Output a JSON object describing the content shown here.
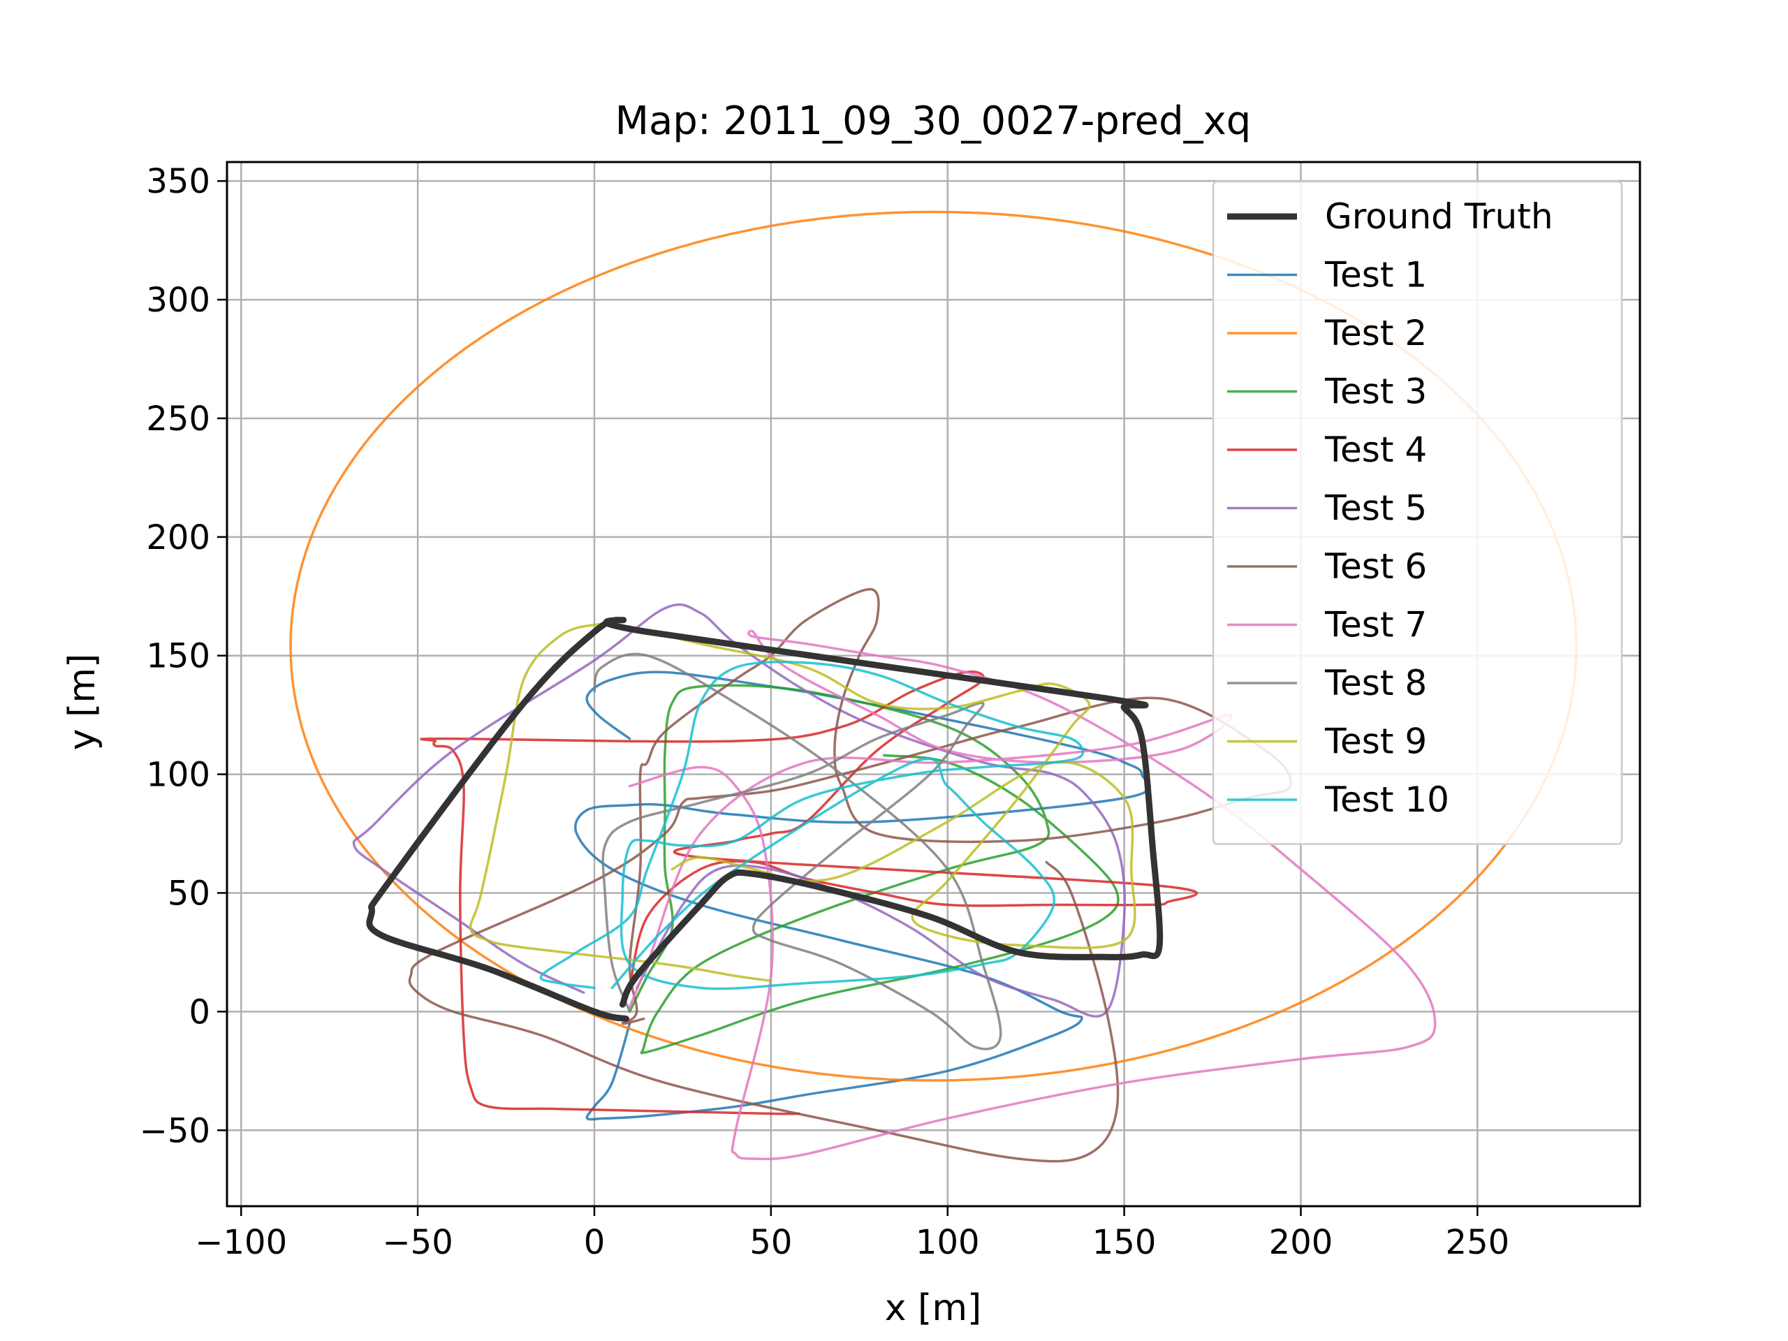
{
  "chart_data": {
    "type": "line",
    "title": "Map: 2011_09_30_0027-pred_xq",
    "xlabel": "x [m]",
    "ylabel": "y [m]",
    "xlim": [
      -104,
      296
    ],
    "ylim": [
      -82,
      358
    ],
    "xticks": [
      -100,
      -50,
      0,
      50,
      100,
      150,
      200,
      250
    ],
    "yticks": [
      -50,
      0,
      50,
      100,
      150,
      200,
      250,
      300,
      350
    ],
    "xtick_labels": [
      "−100",
      "−50",
      "0",
      "50",
      "100",
      "150",
      "200",
      "250"
    ],
    "ytick_labels": [
      "−50",
      "0",
      "50",
      "100",
      "150",
      "200",
      "250",
      "300",
      "350"
    ],
    "grid": true,
    "legend_position": "top-right",
    "series": [
      {
        "name": "Ground Truth",
        "color": "#333333",
        "width": "thick",
        "x": [
          9,
          0,
          -30,
          -60,
          -63,
          -58,
          -20,
          0,
          8,
          15,
          145,
          150,
          155,
          158,
          160,
          155,
          145,
          120,
          95,
          65,
          45,
          38,
          30,
          12,
          8
        ],
        "y": [
          -3,
          0,
          18,
          32,
          42,
          55,
          130,
          160,
          165,
          160,
          132,
          128,
          115,
          70,
          28,
          24,
          23,
          25,
          40,
          52,
          58,
          57,
          45,
          15,
          3
        ]
      },
      {
        "name": "Test 1",
        "color": "#1f77b4",
        "x": [
          10,
          5,
          0,
          -2,
          3,
          15,
          40,
          60,
          100,
          130,
          138,
          132,
          110,
          70,
          30,
          5,
          -5,
          -2,
          10,
          20,
          40,
          80,
          150,
          155,
          150,
          140,
          110,
          70,
          50,
          20,
          5,
          -2,
          1,
          10
        ],
        "y": [
          -5,
          -30,
          -40,
          -45,
          -45,
          -44,
          -40,
          -35,
          -25,
          -10,
          -3,
          0,
          15,
          30,
          45,
          60,
          75,
          85,
          87,
          87,
          83,
          80,
          90,
          100,
          105,
          110,
          120,
          132,
          137,
          143,
          140,
          133,
          125,
          115
        ]
      },
      {
        "name": "Test 2",
        "color": "#ff7f0e",
        "cx": 96,
        "cy": 154,
        "rx": 182,
        "ry": 183
      },
      {
        "name": "Test 3",
        "color": "#2ca02c",
        "x": [
          82,
          100,
          120,
          140,
          148,
          145,
          130,
          100,
          60,
          30,
          15,
          14,
          18,
          30,
          60,
          100,
          125,
          128,
          120,
          100,
          60,
          30,
          22,
          20,
          20,
          20,
          22,
          15,
          10
        ],
        "y": [
          108,
          105,
          90,
          65,
          50,
          40,
          30,
          18,
          5,
          -10,
          -17,
          -15,
          0,
          20,
          40,
          60,
          70,
          80,
          100,
          120,
          135,
          137,
          130,
          110,
          85,
          60,
          35,
          15,
          0
        ]
      },
      {
        "name": "Test 4",
        "color": "#d62728",
        "x": [
          58,
          50,
          20,
          -10,
          -30,
          -35,
          -37,
          -38,
          -37,
          -40,
          -45,
          -45,
          -42,
          40,
          70,
          90,
          105,
          110,
          100,
          80,
          60,
          50,
          40,
          30,
          160,
          162,
          155,
          130,
          100,
          80,
          60,
          45,
          30,
          15,
          10
        ],
        "y": [
          -43,
          -43,
          -42,
          -41,
          -40,
          -32,
          -10,
          50,
          95,
          110,
          112,
          114,
          115,
          114,
          120,
          135,
          143,
          140,
          130,
          110,
          80,
          75,
          72,
          65,
          53,
          46,
          45,
          45,
          45,
          50,
          56,
          63,
          60,
          40,
          10
        ]
      },
      {
        "name": "Test 5",
        "color": "#9467bd",
        "x": [
          -3,
          -20,
          -40,
          -60,
          -68,
          -63,
          -40,
          0,
          20,
          30,
          40,
          60,
          80,
          110,
          130,
          140,
          148,
          150,
          145,
          130,
          110,
          90,
          70,
          50,
          35,
          25,
          12
        ],
        "y": [
          8,
          20,
          40,
          60,
          70,
          78,
          110,
          148,
          170,
          168,
          155,
          135,
          120,
          105,
          100,
          90,
          70,
          40,
          0,
          5,
          15,
          35,
          50,
          60,
          60,
          45,
          10
        ]
      },
      {
        "name": "Test 6",
        "color": "#8c564b",
        "x": [
          128,
          135,
          145,
          148,
          140,
          120,
          80,
          20,
          -15,
          -40,
          -50,
          -52,
          -45,
          0,
          20,
          25,
          30,
          50,
          70,
          95,
          120,
          160,
          190,
          197,
          185,
          160,
          120,
          80,
          70,
          68,
          70,
          75,
          80,
          78,
          60,
          50,
          40,
          20,
          15,
          13,
          13,
          10,
          12,
          8,
          14
        ],
        "y": [
          63,
          50,
          0,
          -40,
          -60,
          -62,
          -50,
          -30,
          -10,
          0,
          8,
          15,
          25,
          55,
          75,
          88,
          90,
          93,
          100,
          110,
          120,
          132,
          110,
          95,
          90,
          80,
          72,
          75,
          95,
          110,
          130,
          150,
          165,
          178,
          165,
          150,
          140,
          118,
          105,
          100,
          60,
          20,
          0,
          -5,
          -3
        ]
      },
      {
        "name": "Test 7",
        "color": "#e377c2",
        "x": [
          10,
          15,
          30,
          60,
          100,
          150,
          180,
          165,
          130,
          100,
          80,
          60,
          50,
          45,
          45,
          60,
          80,
          100,
          130,
          170,
          200,
          230,
          238,
          230,
          200,
          150,
          100,
          60,
          45,
          40,
          40,
          50,
          48,
          40,
          30,
          10
        ],
        "y": [
          2,
          20,
          75,
          105,
          105,
          112,
          125,
          110,
          105,
          110,
          125,
          140,
          150,
          160,
          158,
          155,
          150,
          145,
          130,
          95,
          60,
          20,
          -5,
          -15,
          -20,
          -30,
          -45,
          -60,
          -62,
          -60,
          -50,
          15,
          70,
          95,
          103,
          95
        ]
      },
      {
        "name": "Test 8",
        "color": "#7f7f7f",
        "x": [
          10,
          5,
          3,
          3,
          10,
          30,
          60,
          80,
          100,
          110,
          105,
          95,
          70,
          50,
          45,
          50,
          70,
          95,
          108,
          115,
          110,
          100,
          70,
          40,
          15,
          2,
          0
        ],
        "y": [
          0,
          20,
          50,
          70,
          80,
          88,
          100,
          115,
          125,
          130,
          120,
          100,
          70,
          45,
          35,
          30,
          20,
          0,
          -15,
          -10,
          20,
          60,
          100,
          130,
          150,
          145,
          135
        ]
      },
      {
        "name": "Test 9",
        "color": "#bcbd22",
        "x": [
          50,
          40,
          20,
          -20,
          -30,
          -35,
          -32,
          -25,
          -20,
          -10,
          0,
          10,
          30,
          60,
          80,
          100,
          120,
          130,
          140,
          135,
          120,
          100,
          90,
          100,
          120,
          150,
          152,
          150,
          130,
          100,
          75,
          60,
          45,
          30,
          22
        ],
        "y": [
          13,
          15,
          20,
          27,
          30,
          35,
          50,
          100,
          140,
          158,
          163,
          162,
          155,
          145,
          130,
          128,
          135,
          138,
          130,
          120,
          90,
          55,
          40,
          32,
          28,
          30,
          60,
          90,
          105,
          80,
          60,
          55,
          60,
          65,
          60
        ]
      },
      {
        "name": "Test 10",
        "color": "#17becf",
        "x": [
          0,
          -10,
          -15,
          -5,
          10,
          15,
          25,
          30,
          40,
          60,
          80,
          100,
          120,
          135,
          138,
          130,
          110,
          90,
          60,
          40,
          25,
          15,
          10,
          8,
          10,
          30,
          60,
          90,
          110,
          120,
          130,
          125,
          110,
          100,
          90,
          40,
          20,
          5
        ],
        "y": [
          10,
          12,
          15,
          25,
          40,
          60,
          100,
          130,
          145,
          147,
          142,
          130,
          120,
          115,
          108,
          105,
          103,
          100,
          90,
          72,
          70,
          72,
          70,
          50,
          20,
          10,
          12,
          15,
          20,
          25,
          45,
          60,
          80,
          95,
          105,
          60,
          35,
          10
        ]
      }
    ]
  }
}
